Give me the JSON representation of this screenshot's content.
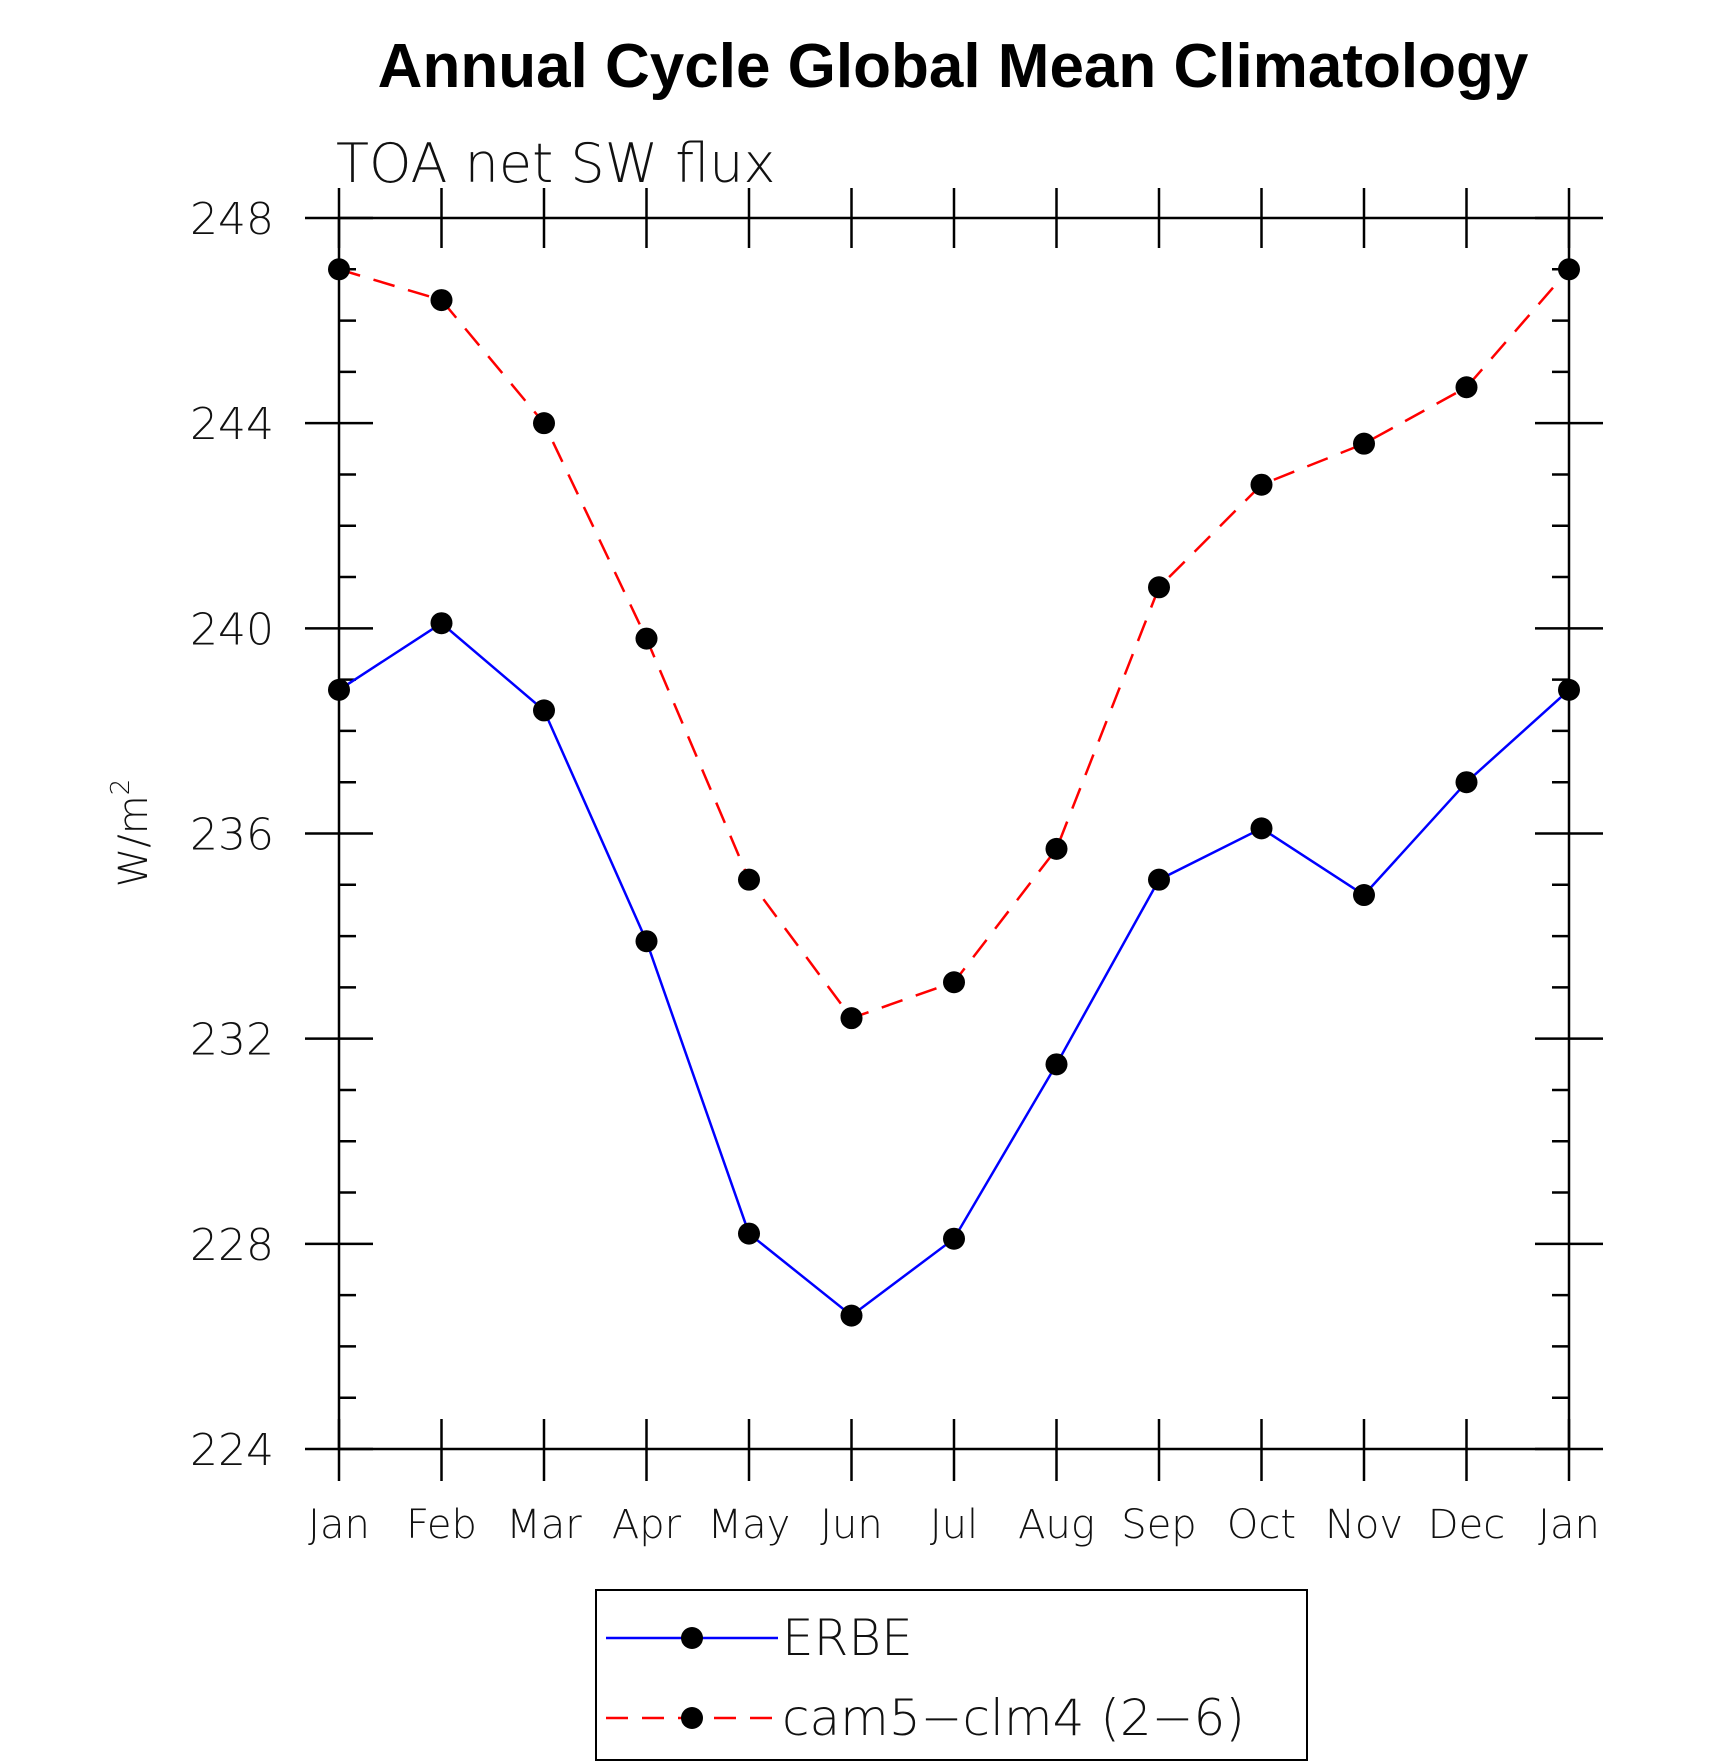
{
  "chart_data": {
    "type": "line",
    "title": "Annual Cycle Global Mean Climatology",
    "subtitle": "TOA net SW flux",
    "ylabel": "W/m",
    "ylabel_superscript": "2",
    "ylim": [
      224,
      248
    ],
    "yticks": [
      "224",
      "228",
      "232",
      "236",
      "240",
      "244",
      "248"
    ],
    "categories": [
      "Jan",
      "Feb",
      "Mar",
      "Apr",
      "May",
      "Jun",
      "Jul",
      "Aug",
      "Sep",
      "Oct",
      "Nov",
      "Dec",
      "Jan"
    ],
    "series": [
      {
        "name": "ERBE",
        "color": "#0000ff",
        "dash": "solid",
        "values": [
          238.8,
          240.1,
          238.4,
          233.9,
          228.2,
          226.6,
          228.1,
          231.5,
          235.1,
          236.1,
          234.8,
          237.0,
          238.8
        ]
      },
      {
        "name": "cam5−clm4 (2−6)",
        "color": "#ff0000",
        "dash": "dashed",
        "values": [
          247.0,
          246.4,
          244.0,
          239.8,
          235.1,
          232.4,
          233.1,
          235.7,
          240.8,
          242.8,
          243.6,
          244.7,
          247.0
        ]
      }
    ],
    "marker_color": "#000000",
    "legend_position": "bottom-center"
  }
}
